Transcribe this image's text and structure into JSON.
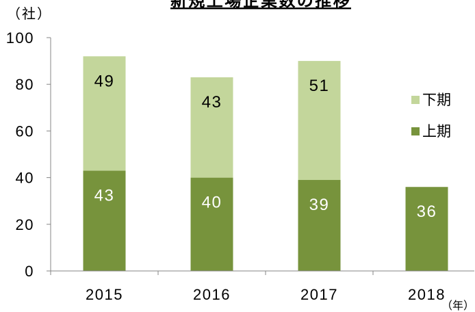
{
  "chart_data": {
    "type": "bar",
    "stacked": true,
    "title": "新規上場企業数の推移",
    "ylabel": "（社）",
    "xlabel": "（年）",
    "categories": [
      "2015",
      "2016",
      "2017",
      "2018"
    ],
    "series": [
      {
        "name": "上期",
        "values": [
          43,
          40,
          39,
          36
        ],
        "color": "#77933c",
        "label_color": "#ffffff"
      },
      {
        "name": "下期",
        "values": [
          49,
          43,
          51,
          null
        ],
        "color": "#c3d69b",
        "label_color": "#000000"
      }
    ],
    "ylim": [
      0,
      100
    ],
    "yticks": [
      0,
      20,
      40,
      60,
      80,
      100
    ],
    "grid": false,
    "data_labels": true,
    "legend": "right"
  }
}
